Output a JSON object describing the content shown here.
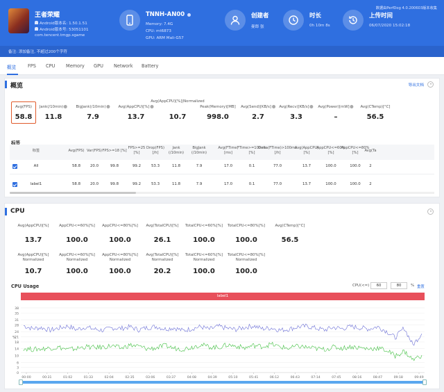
{
  "header": {
    "game_name": "王者荣耀",
    "android_version": "Android版本名: 1.50.1.51",
    "android_code": "Android版本号: 53051101",
    "package": "com.tencent.tmgp.sgame",
    "device": {
      "name": "TNNH-AN00",
      "memory": "Memory: 7.4G",
      "cpu": "CPU: mt6873",
      "gpu": "GPU: ARM Mali-G57"
    },
    "creator": {
      "title": "创建者",
      "value": "曼郎 张"
    },
    "duration": {
      "title": "时长",
      "value": "0h 10m 8s"
    },
    "upload": {
      "title": "上传时间",
      "value": "06/07/2020 15:02:18"
    },
    "version_note": "数据由PerfDog 4.0.200603版本收集",
    "remark": "备注:  添加备注, 不超过200个字符"
  },
  "tabs": [
    "概览",
    "FPS",
    "CPU",
    "Memory",
    "GPU",
    "Network",
    "Battery"
  ],
  "overview": {
    "title": "概览",
    "export_label": "导出文档",
    "metrics": [
      {
        "label": "Avg(FPS)",
        "value": "58.8"
      },
      {
        "label": "Jank(/10min)",
        "value": "11.8"
      },
      {
        "label": "BigJank(/10min)",
        "value": "7.9"
      },
      {
        "label": "Avg(AppCPU)[%]",
        "value": "13.7"
      },
      {
        "label": "Avg(AppCPU)[%]|Normalized",
        "value": "10.7"
      },
      {
        "label": "Peak(Memory)[MB]",
        "value": "998.0"
      },
      {
        "label": "Avg(Send)[KB/s]",
        "value": "2.7"
      },
      {
        "label": "Avg(Recv)[KB/s]",
        "value": "3.3"
      },
      {
        "label": "Avg(Power)[mW]",
        "value": "–"
      },
      {
        "label": "Avg(CTemp)[°C]",
        "value": "56.5"
      }
    ]
  },
  "labels_table": {
    "title": "标签",
    "columns": [
      "标签",
      "Avg(FPS)",
      "Var(FPS)",
      "FPS>=18 [%]",
      "FPS>=25|[%]",
      "Drop(FPS)|[/h]",
      "Jank|(/10min)",
      "BigJank|(/10min)",
      "Avg(FTime)|[ms]",
      "FTime>=100ms|[%]",
      "Delta(FTime)>100ms|[/h]",
      "Avg(AppCPU)|[%]",
      "AppCPU<=60%|[%]",
      "AppCPU<=80%|[%]",
      "Avg(Ta"
    ],
    "rows": [
      [
        "All",
        "58.8",
        "20.0",
        "99.8",
        "99.2",
        "53.3",
        "11.8",
        "7.9",
        "17.0",
        "0.1",
        "77.0",
        "13.7",
        "100.0",
        "100.0",
        "2"
      ],
      [
        "label1",
        "58.8",
        "20.0",
        "99.8",
        "99.2",
        "53.3",
        "11.8",
        "7.9",
        "17.0",
        "0.1",
        "77.0",
        "13.7",
        "100.0",
        "100.0",
        "2"
      ]
    ]
  },
  "cpu": {
    "title": "CPU",
    "row1": [
      {
        "label": "Avg(AppCPU)[%]",
        "value": "13.7"
      },
      {
        "label": "AppCPU<=60%[%]",
        "value": "100.0"
      },
      {
        "label": "AppCPU<=80%[%]",
        "value": "100.0"
      },
      {
        "label": "Avg(TotalCPU)[%]",
        "value": "26.1"
      },
      {
        "label": "TotalCPU<=60%[%]",
        "value": "100.0"
      },
      {
        "label": "TotalCPU<=80%[%]",
        "value": "100.0"
      },
      {
        "label": "Avg(CTemp)[°C]",
        "value": "56.5"
      }
    ],
    "row2": [
      {
        "label": "Avg(AppCPU)[%]|Normalized",
        "value": "10.7"
      },
      {
        "label": "AppCPU<=60%[%]|Normalized",
        "value": "100.0"
      },
      {
        "label": "AppCPU<=80%[%]|Normalized",
        "value": "100.0"
      },
      {
        "label": "Avg(TotalCPU)[%]|Normalized",
        "value": "20.2"
      },
      {
        "label": "TotalCPU<=60%[%]|Normalized",
        "value": "100.0"
      },
      {
        "label": "TotalCPU<=80%[%]|Normalized",
        "value": "100.0"
      }
    ],
    "usage_title": "CPU Usage",
    "threshold_label": "CPU(<=)",
    "threshold_1": "60",
    "threshold_2": "80",
    "threshold_unit": "%",
    "reset_label": "重置"
  },
  "chart_data": {
    "type": "line",
    "title": "",
    "label_bar": "label1",
    "ylabel": "%",
    "ylim": [
      0,
      40
    ],
    "yticks": [
      "0",
      "3",
      "6",
      "10",
      "14",
      "18",
      "21",
      "24",
      "28",
      "31",
      "35",
      "38"
    ],
    "xticks": [
      "00:00",
      "00:31",
      "01:02",
      "01:33",
      "02:04",
      "02:35",
      "03:06",
      "03:37",
      "04:08",
      "04:39",
      "05:10",
      "05:41",
      "06:12",
      "06:43",
      "07:14",
      "07:45",
      "08:16",
      "08:47",
      "09:18",
      "09:49"
    ],
    "series": [
      {
        "color": "#6b6fd6",
        "values": [
          27.5,
          25.8,
          26.4,
          24.9,
          26.1,
          27.3,
          25.2,
          26.7,
          25.5,
          24.8,
          26.2,
          25.9,
          26.8,
          25.1,
          26.4,
          27.0,
          25.6,
          26.3,
          24.6,
          25.8,
          26.9,
          25.4,
          27.1,
          26.0,
          25.3,
          26.6,
          27.4,
          25.7,
          26.2,
          24.9,
          25.5,
          26.8,
          27.2,
          26.1,
          25.0,
          26.5,
          25.8,
          27.0,
          26.3,
          25.6,
          26.9,
          24.3,
          20.5,
          26.2,
          16.2,
          22.8
        ]
      },
      {
        "color": "#3fbf3f",
        "values": [
          14.2,
          13.6,
          13.9,
          14.4,
          14.8,
          13.5,
          14.1,
          15.2,
          14.6,
          15.0,
          15.7,
          14.2,
          16.1,
          15.4,
          13.9,
          14.5,
          15.8,
          14.3,
          13.8,
          14.9,
          16.4,
          15.1,
          14.7,
          16.2,
          15.6,
          14.4,
          15.9,
          15.3,
          16.6,
          15.0,
          14.2,
          15.5,
          14.8,
          14.1,
          13.6,
          14.9,
          14.3,
          15.2,
          14.6,
          13.9,
          14.4,
          13.1,
          9.8,
          12.5,
          7.5,
          10.2
        ]
      }
    ]
  }
}
